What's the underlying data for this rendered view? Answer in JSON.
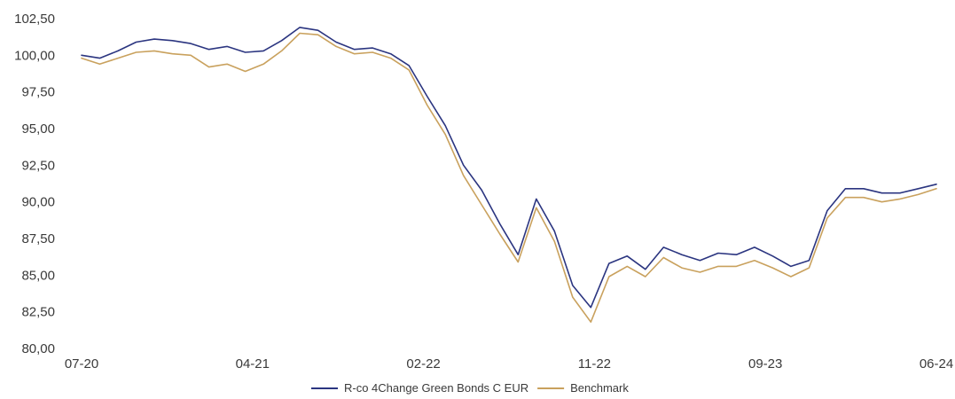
{
  "chart_data": {
    "type": "line",
    "title": "",
    "xlabel": "",
    "ylabel": "",
    "grid": false,
    "legend_position": "bottom-center",
    "x_ticks": [
      "07-20",
      "04-21",
      "02-22",
      "11-22",
      "09-23",
      "06-24"
    ],
    "y_ticks": [
      "102,50",
      "100,00",
      "97,50",
      "95,00",
      "92,50",
      "90,00",
      "87,50",
      "85,00",
      "82,50",
      "80,00"
    ],
    "ylim": [
      80,
      102.5
    ],
    "x_range": [
      "2020-07",
      "2024-06"
    ],
    "x": [
      "2020-07",
      "2020-08",
      "2020-09",
      "2020-10",
      "2020-11",
      "2020-12",
      "2021-01",
      "2021-02",
      "2021-03",
      "2021-04",
      "2021-05",
      "2021-06",
      "2021-07",
      "2021-08",
      "2021-09",
      "2021-10",
      "2021-11",
      "2021-12",
      "2022-01",
      "2022-02",
      "2022-03",
      "2022-04",
      "2022-05",
      "2022-06",
      "2022-07",
      "2022-08",
      "2022-09",
      "2022-10",
      "2022-11",
      "2022-12",
      "2023-01",
      "2023-02",
      "2023-03",
      "2023-04",
      "2023-05",
      "2023-06",
      "2023-07",
      "2023-08",
      "2023-09",
      "2023-10",
      "2023-11",
      "2023-12",
      "2024-01",
      "2024-02",
      "2024-03",
      "2024-04",
      "2024-05",
      "2024-06"
    ],
    "series": [
      {
        "name": "R-co 4Change Green Bonds C EUR",
        "color": "#2b3580",
        "values": [
          100.0,
          99.8,
          100.3,
          100.9,
          101.1,
          101.0,
          100.8,
          100.4,
          100.6,
          100.2,
          100.3,
          101.0,
          101.9,
          101.7,
          100.9,
          100.4,
          100.5,
          100.1,
          99.3,
          97.2,
          95.2,
          92.5,
          90.8,
          88.5,
          86.4,
          90.2,
          88.0,
          84.3,
          82.8,
          85.8,
          86.3,
          85.4,
          86.9,
          86.4,
          86.0,
          86.5,
          86.4,
          86.9,
          86.3,
          85.6,
          86.0,
          89.4,
          90.9,
          90.9,
          90.6,
          90.6,
          90.9,
          91.2
        ]
      },
      {
        "name": "Benchmark",
        "color": "#c9a15d",
        "values": [
          99.8,
          99.4,
          99.8,
          100.2,
          100.3,
          100.1,
          100.0,
          99.2,
          99.4,
          98.9,
          99.4,
          100.3,
          101.5,
          101.4,
          100.6,
          100.1,
          100.2,
          99.8,
          99.0,
          96.6,
          94.6,
          91.8,
          89.8,
          87.8,
          85.9,
          89.6,
          87.3,
          83.5,
          81.8,
          84.9,
          85.6,
          84.9,
          86.2,
          85.5,
          85.2,
          85.6,
          85.6,
          86.0,
          85.5,
          84.9,
          85.5,
          88.9,
          90.3,
          90.3,
          90.0,
          90.2,
          90.5,
          90.9
        ]
      }
    ]
  }
}
